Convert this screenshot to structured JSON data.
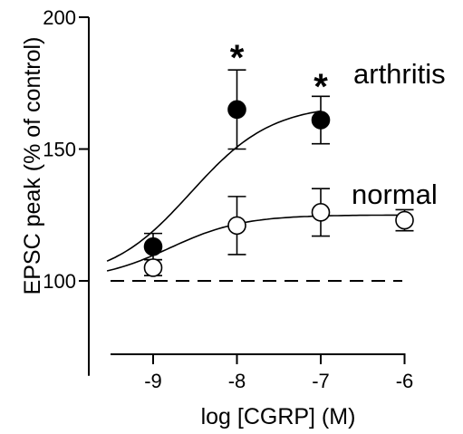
{
  "chart_data": {
    "type": "scatter",
    "xlabel": "log [CGRP] (M)",
    "ylabel": "EPSC peak (% of control)",
    "xlim": [
      -9.55,
      -6.0
    ],
    "ylim": [
      64,
      200
    ],
    "xticks": [
      -9,
      -8,
      -7,
      -6
    ],
    "xtick_labels": [
      "-9",
      "-8",
      "-7",
      "-6"
    ],
    "yticks": [
      100,
      150,
      200
    ],
    "ytick_labels": [
      "100",
      "150",
      "200"
    ],
    "reference_line": {
      "y": 100,
      "style": "dashed"
    },
    "series": [
      {
        "name": "arthritis",
        "marker": "filled-circle",
        "x": [
          -9,
          -8,
          -7
        ],
        "y": [
          113,
          165,
          161
        ],
        "err": [
          5,
          15,
          9
        ],
        "fit": {
          "baseline": 100,
          "top": 167,
          "ec50": -8.55,
          "hill": 0.9
        }
      },
      {
        "name": "normal",
        "marker": "open-circle",
        "x": [
          -9,
          -8,
          -7,
          -6
        ],
        "y": [
          105,
          121,
          126,
          123
        ],
        "err": [
          3,
          11,
          9,
          4
        ],
        "fit": {
          "baseline": 100,
          "top": 125,
          "ec50": -8.8,
          "hill": 1.0
        }
      }
    ],
    "annotations": [
      {
        "text": "*",
        "x": -8,
        "y": 187
      },
      {
        "text": "*",
        "x": -7,
        "y": 176
      }
    ],
    "colors": {
      "axis": "#000000",
      "filled_marker": "#000000",
      "open_marker": "#ffffff"
    }
  }
}
